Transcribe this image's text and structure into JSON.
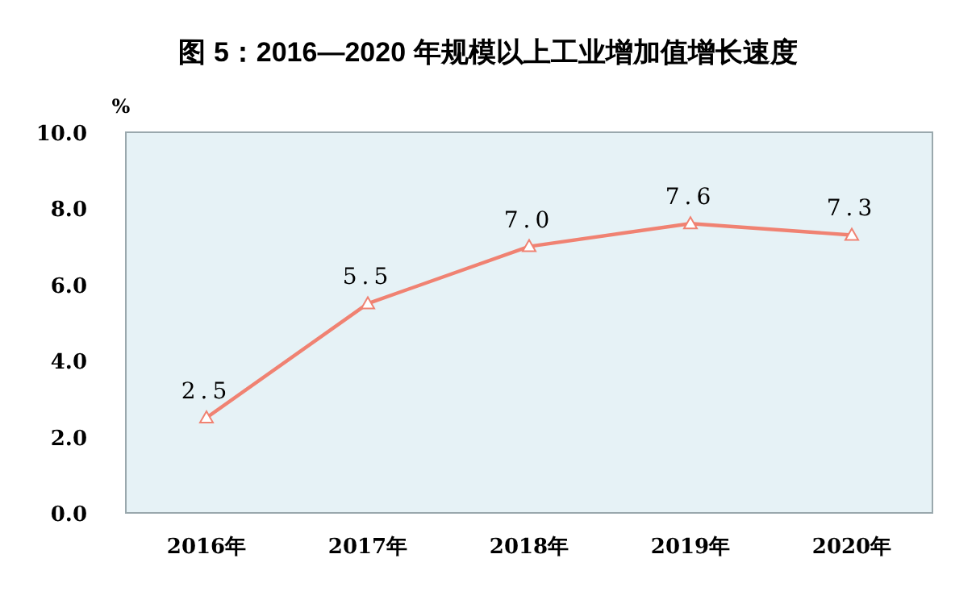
{
  "chart_data": {
    "type": "line",
    "title": "图 5：2016—2020 年规模以上工业增加值增长速度",
    "ylabel": "%",
    "categories": [
      "2016年",
      "2017年",
      "2018年",
      "2019年",
      "2020年"
    ],
    "series": [
      {
        "color": "#f08272",
        "values": [
          2.5,
          5.5,
          7.0,
          7.6,
          7.3
        ],
        "value_labels": [
          "2.5",
          "5.5",
          "7.0",
          "7.6",
          "7.3"
        ]
      }
    ],
    "ylim": [
      0,
      10
    ],
    "yticks": [
      {
        "value": 0,
        "label": "0.0"
      },
      {
        "value": 2,
        "label": "2.0"
      },
      {
        "value": 4,
        "label": "4.0"
      },
      {
        "value": 6,
        "label": "6.0"
      },
      {
        "value": 8,
        "label": "8.0"
      },
      {
        "value": 10,
        "label": "10.0"
      }
    ],
    "marker": "triangle",
    "line_style": "solid",
    "grid": false
  }
}
